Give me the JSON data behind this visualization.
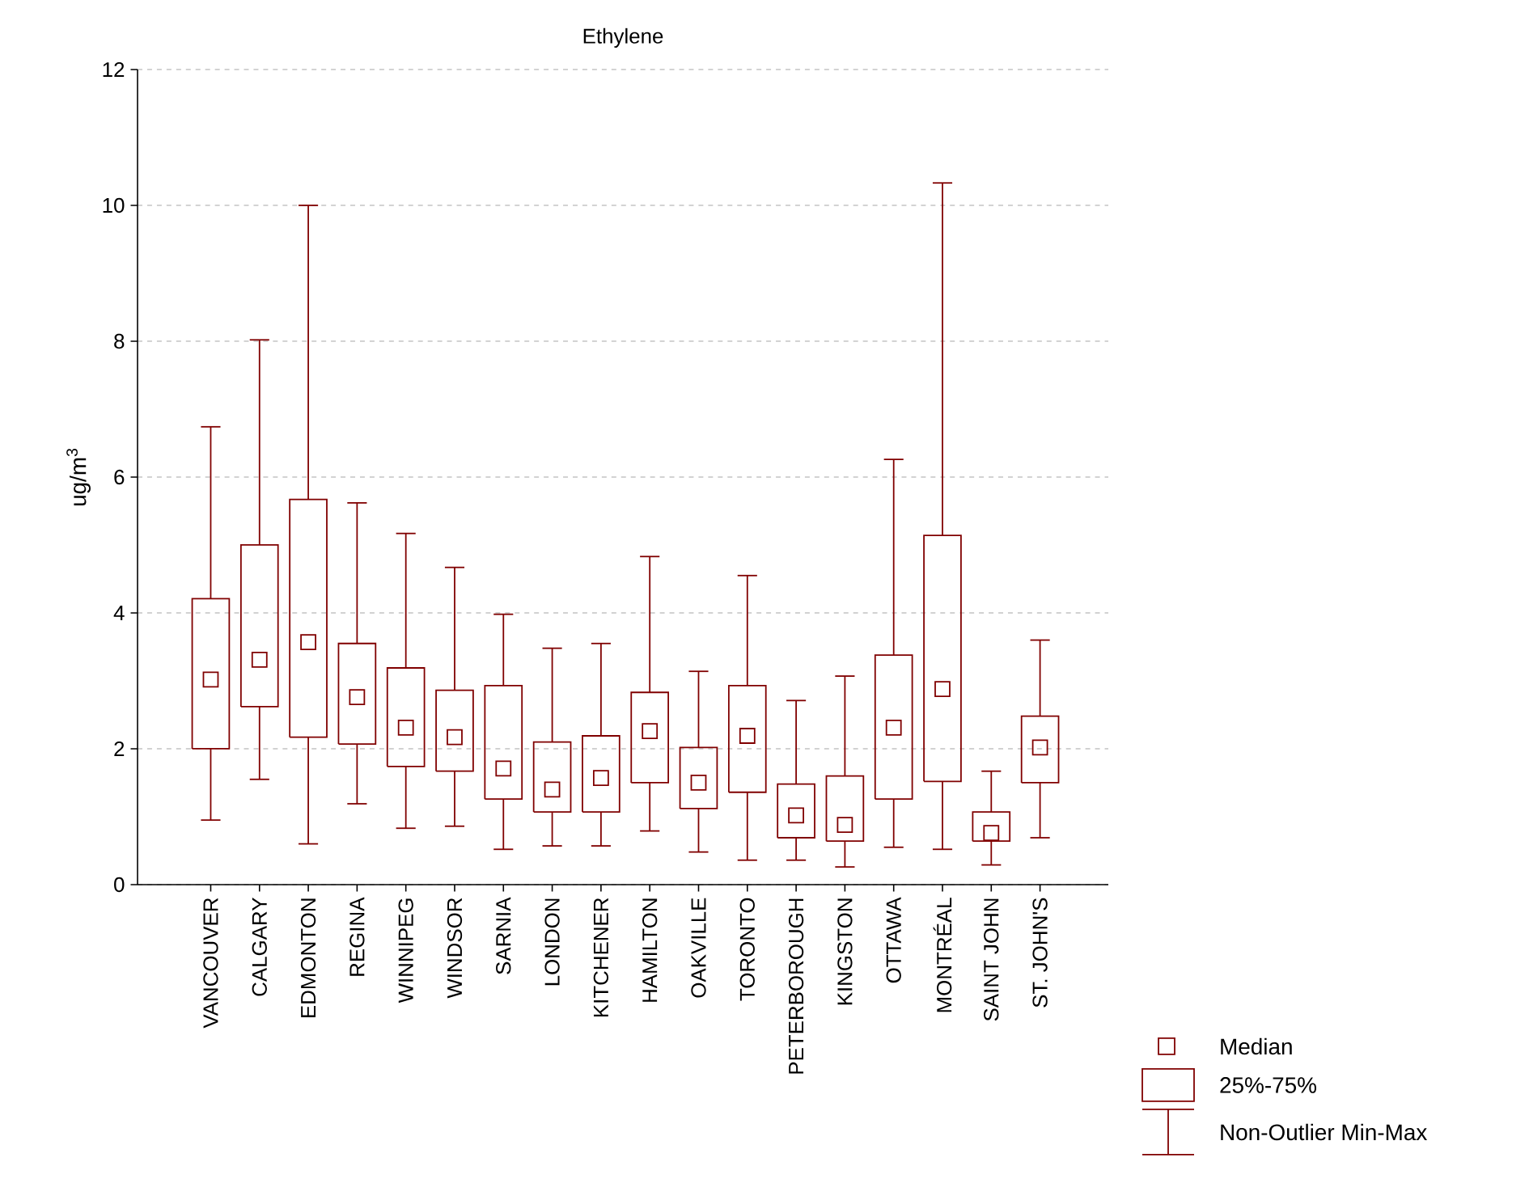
{
  "chart_data": {
    "type": "box",
    "title": "Ethylene",
    "ylabel": "ug/m$^{3}$",
    "color": "#800000",
    "grid": "y",
    "ylim": [
      0,
      12
    ],
    "yticks": [
      0,
      2,
      4,
      6,
      8,
      10,
      12
    ],
    "categories": [
      "VANCOUVER",
      "CALGARY",
      "EDMONTON",
      "REGINA",
      "WINNIPEG",
      "WINDSOR",
      "SARNIA",
      "LONDON",
      "KITCHENER",
      "HAMILTON",
      "OAKVILLE",
      "TORONTO",
      "PETERBOROUGH",
      "KINGSTON",
      "OTTAWA",
      "MONTRÉAL",
      "SAINT JOHN",
      "ST. JOHN'S"
    ],
    "boxes": [
      {
        "low": 0.95,
        "q1": 2.0,
        "median": 3.02,
        "q3": 4.21,
        "high": 6.74
      },
      {
        "low": 1.55,
        "q1": 2.62,
        "median": 3.31,
        "q3": 5.0,
        "high": 8.02
      },
      {
        "low": 0.6,
        "q1": 2.17,
        "median": 3.57,
        "q3": 5.67,
        "high": 10.0
      },
      {
        "low": 1.19,
        "q1": 2.07,
        "median": 2.76,
        "q3": 3.55,
        "high": 5.62
      },
      {
        "low": 0.83,
        "q1": 1.74,
        "median": 2.31,
        "q3": 3.19,
        "high": 5.17
      },
      {
        "low": 0.86,
        "q1": 1.67,
        "median": 2.17,
        "q3": 2.86,
        "high": 4.67
      },
      {
        "low": 0.52,
        "q1": 1.26,
        "median": 1.71,
        "q3": 2.93,
        "high": 3.98
      },
      {
        "low": 0.57,
        "q1": 1.07,
        "median": 1.4,
        "q3": 2.1,
        "high": 3.48
      },
      {
        "low": 0.57,
        "q1": 1.07,
        "median": 1.57,
        "q3": 2.19,
        "high": 3.55
      },
      {
        "low": 0.79,
        "q1": 1.5,
        "median": 2.26,
        "q3": 2.83,
        "high": 4.83
      },
      {
        "low": 0.48,
        "q1": 1.12,
        "median": 1.5,
        "q3": 2.02,
        "high": 3.14
      },
      {
        "low": 0.36,
        "q1": 1.36,
        "median": 2.19,
        "q3": 2.93,
        "high": 4.55
      },
      {
        "low": 0.36,
        "q1": 0.69,
        "median": 1.02,
        "q3": 1.48,
        "high": 2.71
      },
      {
        "low": 0.26,
        "q1": 0.64,
        "median": 0.88,
        "q3": 1.6,
        "high": 3.07
      },
      {
        "low": 0.55,
        "q1": 1.26,
        "median": 2.31,
        "q3": 3.38,
        "high": 6.26
      },
      {
        "low": 0.52,
        "q1": 1.52,
        "median": 2.88,
        "q3": 5.14,
        "high": 10.33
      },
      {
        "low": 0.29,
        "q1": 0.64,
        "median": 0.76,
        "q3": 1.07,
        "high": 1.67
      },
      {
        "low": 0.69,
        "q1": 1.5,
        "median": 2.02,
        "q3": 2.48,
        "high": 3.6
      }
    ],
    "annotations": [
      "Median",
      "25%-75%",
      "Non-Outlier Min-Max"
    ]
  }
}
